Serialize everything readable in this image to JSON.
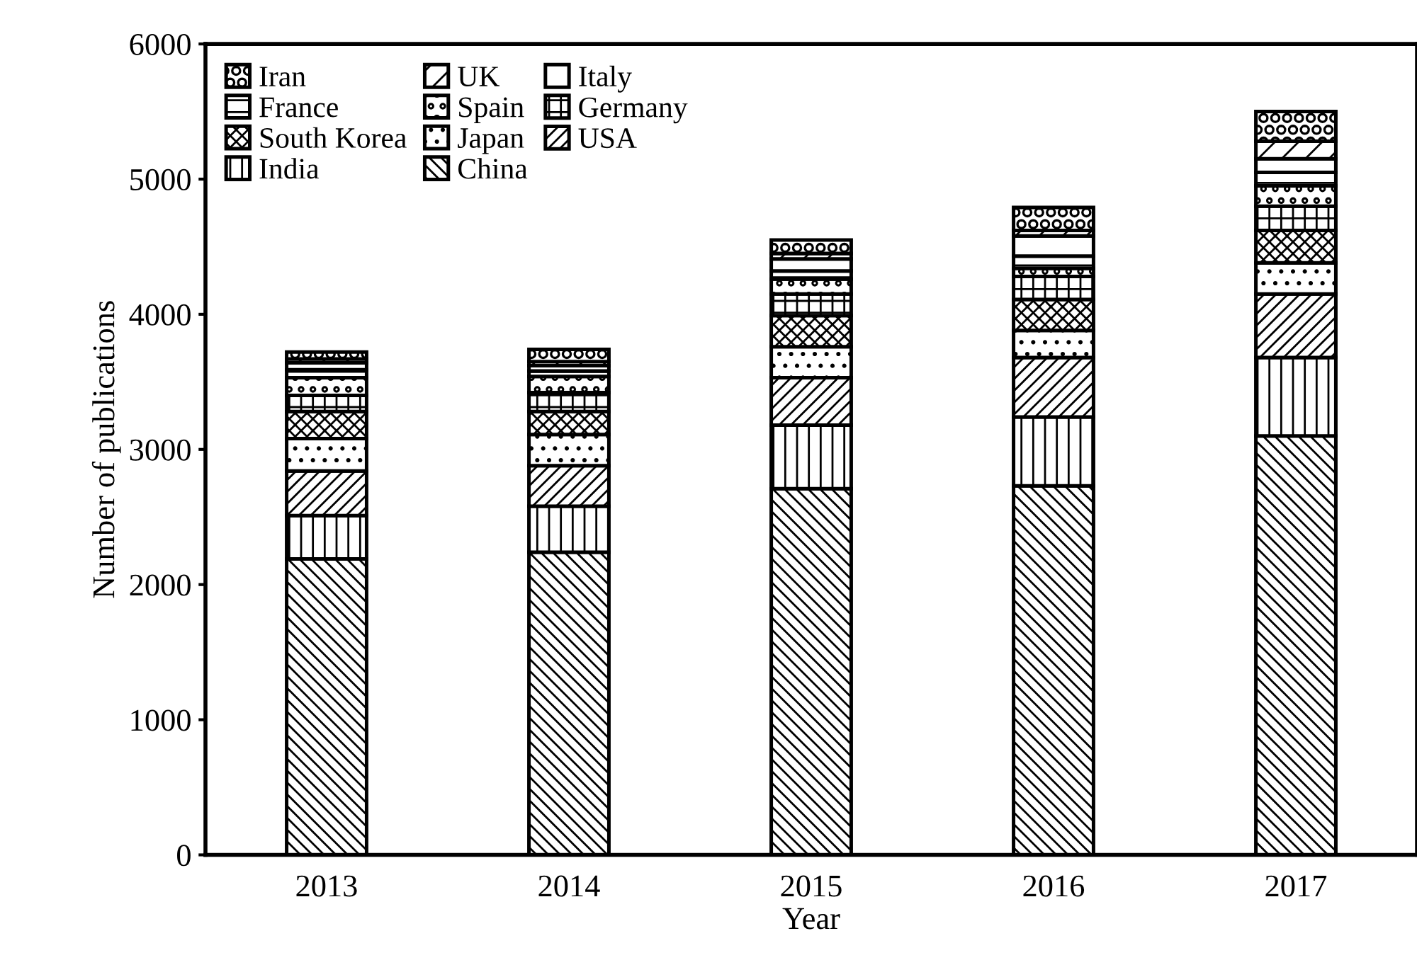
{
  "chart_data": {
    "type": "bar",
    "stacked": true,
    "xlabel": "Year",
    "ylabel": "Number of publications",
    "categories": [
      "2013",
      "2014",
      "2015",
      "2016",
      "2017"
    ],
    "ylim": [
      0,
      6000
    ],
    "yticks": [
      0,
      1000,
      2000,
      3000,
      4000,
      5000,
      6000
    ],
    "grid": false,
    "legend": "top left",
    "series": [
      {
        "name": "China",
        "color": "#000000",
        "values": [
          2190,
          2240,
          2710,
          2730,
          3100
        ]
      },
      {
        "name": "India",
        "color": "#000000",
        "values": [
          320,
          340,
          470,
          510,
          580
        ]
      },
      {
        "name": "USA",
        "color": "#000000",
        "values": [
          330,
          300,
          350,
          440,
          470
        ]
      },
      {
        "name": "Japan",
        "color": "#000000",
        "values": [
          240,
          230,
          230,
          200,
          230
        ]
      },
      {
        "name": "South Korea",
        "color": "#000000",
        "values": [
          200,
          170,
          230,
          230,
          240
        ]
      },
      {
        "name": "Germany",
        "color": "#000000",
        "values": [
          120,
          140,
          160,
          170,
          180
        ]
      },
      {
        "name": "Spain",
        "color": "#000000",
        "values": [
          130,
          120,
          110,
          60,
          150
        ]
      },
      {
        "name": "France",
        "color": "#000000",
        "values": [
          60,
          40,
          60,
          90,
          100
        ]
      },
      {
        "name": "Italy",
        "color": "#000000",
        "values": [
          50,
          40,
          90,
          150,
          100
        ]
      },
      {
        "name": "UK",
        "color": "#000000",
        "values": [
          30,
          30,
          40,
          40,
          130
        ]
      },
      {
        "name": "Iran",
        "color": "#000000",
        "values": [
          50,
          90,
          100,
          170,
          220
        ]
      }
    ]
  }
}
